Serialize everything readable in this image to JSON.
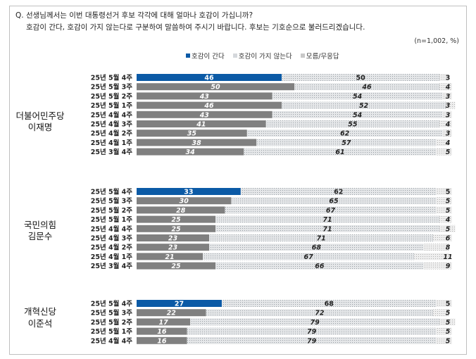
{
  "question": {
    "line1": "Q. 선생님께서는 이번 대통령선거 후보 각각에 대해 얼마나 호감이 가십니까?",
    "line2": "호감이 간다, 호감이 가지 않는다로 구분하여 말씀하여 주시기 바랍니다. 후보는 기호순으로 불러드리겠습니다."
  },
  "unit_note": "(n=1,002, %)",
  "legend": [
    "호감이 간다",
    "호감이 가지 않는다",
    "모름/무응답"
  ],
  "colors": {
    "favorable": "#0b5aa6",
    "highlight": "#0b5aa6",
    "other_fav": "#808080",
    "unfav": "#d5d8dc",
    "dk": "#c8c8c8"
  },
  "chart_data": [
    {
      "type": "bar",
      "stacked": true,
      "orientation": "horizontal",
      "candidate": [
        "더불어민주당",
        "이재명"
      ],
      "categories": [
        "25년 5월 4주",
        "25년 5월 3주",
        "25년 5월 2주",
        "25년 5월 1주",
        "25년 4월 4주",
        "25년 4월 3주",
        "25년 4월 2주",
        "25년 4월 1주",
        "25년 3월 4주"
      ],
      "series": [
        {
          "name": "호감이 간다",
          "values": [
            46,
            50,
            43,
            46,
            43,
            41,
            35,
            38,
            34
          ]
        },
        {
          "name": "호감이 가지 않는다",
          "values": [
            50,
            46,
            54,
            52,
            54,
            55,
            62,
            57,
            61
          ]
        },
        {
          "name": "모름/무응답",
          "values": [
            3,
            4,
            3,
            3,
            3,
            4,
            3,
            4,
            5
          ]
        }
      ]
    },
    {
      "type": "bar",
      "stacked": true,
      "orientation": "horizontal",
      "candidate": [
        "국민의힘",
        "김문수"
      ],
      "categories": [
        "25년 5월 4주",
        "25년 5월 3주",
        "25년 5월 2주",
        "25년 5월 1주",
        "25년 4월 4주",
        "25년 4월 3주",
        "25년 4월 2주",
        "25년 4월 1주",
        "25년 3월 4주"
      ],
      "series": [
        {
          "name": "호감이 간다",
          "values": [
            33,
            30,
            28,
            25,
            25,
            23,
            23,
            21,
            25
          ]
        },
        {
          "name": "호감이 가지 않는다",
          "values": [
            62,
            65,
            67,
            71,
            71,
            71,
            68,
            67,
            66
          ]
        },
        {
          "name": "모름/무응답",
          "values": [
            5,
            5,
            5,
            4,
            5,
            6,
            8,
            11,
            9
          ]
        }
      ]
    },
    {
      "type": "bar",
      "stacked": true,
      "orientation": "horizontal",
      "candidate": [
        "개혁신당",
        "이준석"
      ],
      "categories": [
        "25년 5월 4주",
        "25년 5월 3주",
        "25년 5월 2주",
        "25년 5월 1주",
        "25년 4월 4주"
      ],
      "series": [
        {
          "name": "호감이 간다",
          "values": [
            27,
            22,
            17,
            16,
            16
          ]
        },
        {
          "name": "호감이 가지 않는다",
          "values": [
            68,
            72,
            79,
            79,
            79
          ]
        },
        {
          "name": "모름/무응답",
          "values": [
            5,
            5,
            5,
            5,
            5
          ]
        }
      ]
    }
  ]
}
